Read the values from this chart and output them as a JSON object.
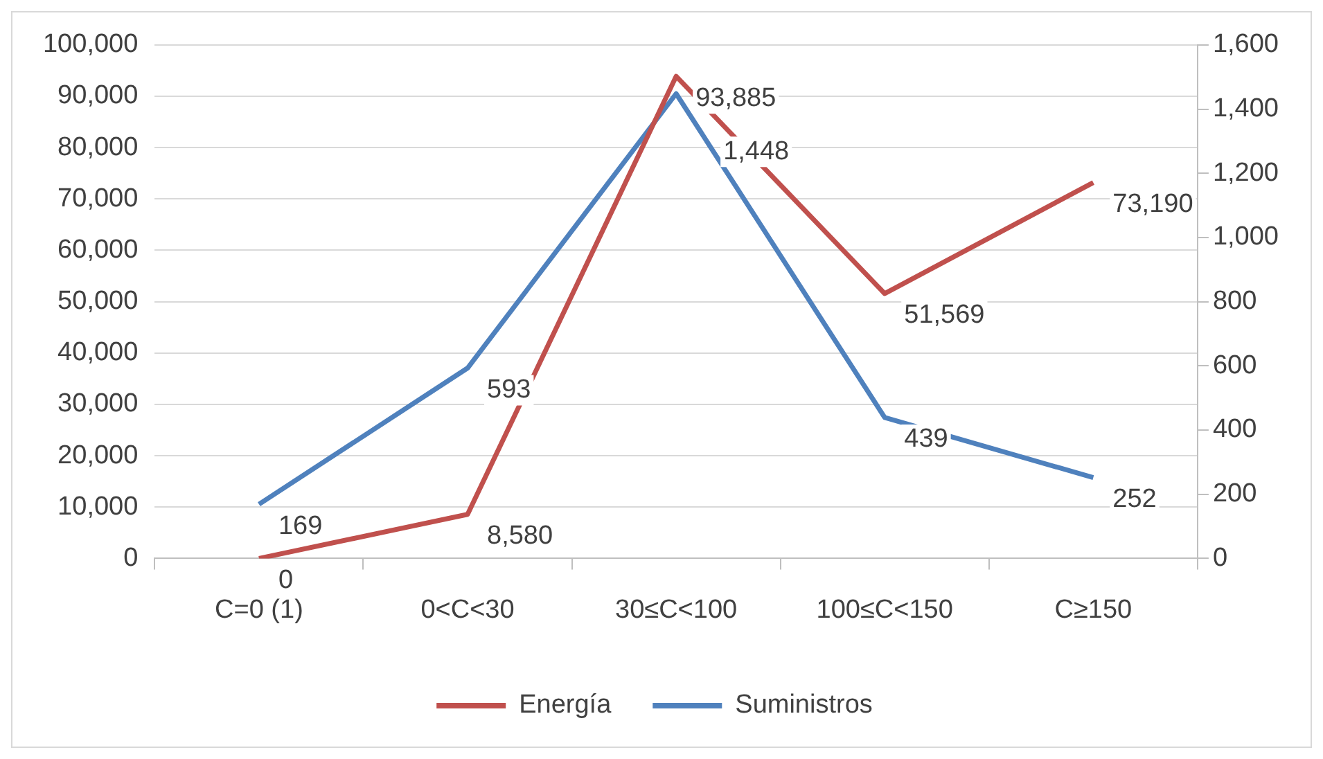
{
  "chart_data": {
    "type": "line",
    "categories": [
      "C=0 (1)",
      "0<C<30",
      "30≤C<100",
      "100≤C<150",
      "C≥150"
    ],
    "series": [
      {
        "name": "Energía",
        "color": "#c0504d",
        "values": [
          0,
          8580,
          93885,
          51569,
          73190
        ],
        "value_labels": [
          "0",
          "8,580",
          "93,885",
          "51,569",
          "73,190"
        ]
      },
      {
        "name": "Suministros",
        "color": "#4f81bd",
        "axis": "y2",
        "values": [
          169,
          593,
          1448,
          439,
          252
        ],
        "value_labels": [
          "169",
          "593",
          "1,448",
          "439",
          "252"
        ]
      }
    ],
    "ylim": [
      0,
      100000
    ],
    "yticks": [
      {
        "value": 0,
        "label": "0"
      },
      {
        "value": 10000,
        "label": "10,000"
      },
      {
        "value": 20000,
        "label": "20,000"
      },
      {
        "value": 30000,
        "label": "30,000"
      },
      {
        "value": 40000,
        "label": "40,000"
      },
      {
        "value": 50000,
        "label": "50,000"
      },
      {
        "value": 60000,
        "label": "60,000"
      },
      {
        "value": 70000,
        "label": "70,000"
      },
      {
        "value": 80000,
        "label": "80,000"
      },
      {
        "value": 90000,
        "label": "90,000"
      },
      {
        "value": 100000,
        "label": "100,000"
      }
    ],
    "y2lim": [
      0,
      1600
    ],
    "y2ticks": [
      {
        "value": 0,
        "label": "0"
      },
      {
        "value": 200,
        "label": "200"
      },
      {
        "value": 400,
        "label": "400"
      },
      {
        "value": 600,
        "label": "600"
      },
      {
        "value": 800,
        "label": "800"
      },
      {
        "value": 1000,
        "label": "1,000"
      },
      {
        "value": 1200,
        "label": "1,200"
      },
      {
        "value": 1400,
        "label": "1,400"
      },
      {
        "value": 1600,
        "label": "1,600"
      }
    ],
    "grid": "y",
    "legend": "bottom",
    "marker": "none",
    "line_style": "solid"
  }
}
